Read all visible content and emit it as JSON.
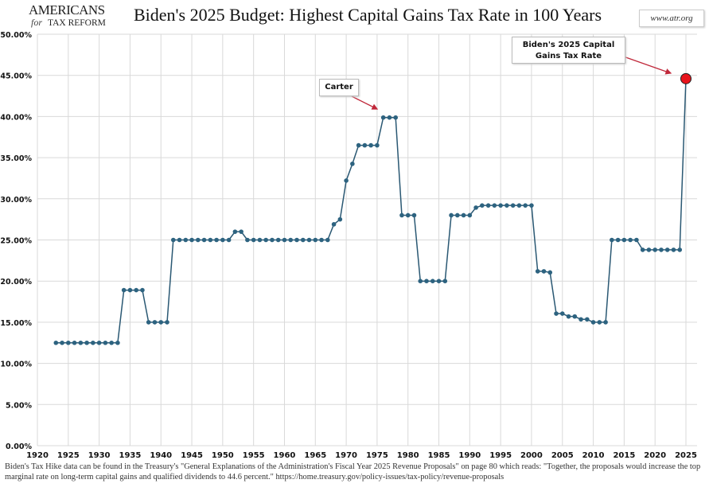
{
  "header": {
    "logo_line1": "AMERICANS",
    "logo_for": "for",
    "logo_line2": "TAX REFORM",
    "title": "Biden's 2025 Budget: Highest Capital Gains Tax Rate in 100 Years",
    "site": "www.atr.org"
  },
  "annotations": {
    "carter": "Carter",
    "biden_line1": "Biden's 2025 Capital",
    "biden_line2": "Gains Tax Rate"
  },
  "footer": {
    "note": "Biden's Tax Hike data can be found in the Treasury's \"General Explanations of the Administration's Fiscal Year 2025 Revenue Proposals\" on page 80 which reads: \"Together, the proposals would increase the top marginal rate on long-term capital gains and qualified dividends to 44.6 percent.\"  https://home.treasury.gov/policy-issues/tax-policy/revenue-proposals"
  },
  "colors": {
    "line": "#2a5873",
    "marker": "#2d6380",
    "highlight": "#e8141c",
    "grid": "#d9d9d9",
    "arrow": "#c0283a"
  },
  "chart_data": {
    "type": "line",
    "title": "Biden's 2025 Budget: Highest Capital Gains Tax Rate in 100 Years",
    "xlabel": "",
    "ylabel": "",
    "xlim": [
      1920,
      2025
    ],
    "ylim": [
      0,
      50
    ],
    "x_ticks": [
      1920,
      1925,
      1930,
      1935,
      1940,
      1945,
      1950,
      1955,
      1960,
      1965,
      1970,
      1975,
      1980,
      1985,
      1990,
      1995,
      2000,
      2005,
      2010,
      2015,
      2020,
      2025
    ],
    "y_ticks": [
      "0.00%",
      "5.00%",
      "10.00%",
      "15.00%",
      "20.00%",
      "25.00%",
      "30.00%",
      "35.00%",
      "40.00%",
      "45.00%",
      "50.00%"
    ],
    "grid": true,
    "x": [
      1923,
      1924,
      1925,
      1926,
      1927,
      1928,
      1929,
      1930,
      1931,
      1932,
      1933,
      1934,
      1935,
      1936,
      1937,
      1938,
      1939,
      1940,
      1941,
      1942,
      1943,
      1944,
      1945,
      1946,
      1947,
      1948,
      1949,
      1950,
      1951,
      1952,
      1953,
      1954,
      1955,
      1956,
      1957,
      1958,
      1959,
      1960,
      1961,
      1962,
      1963,
      1964,
      1965,
      1966,
      1967,
      1968,
      1969,
      1970,
      1971,
      1972,
      1973,
      1974,
      1975,
      1976,
      1977,
      1978,
      1979,
      1980,
      1981,
      1982,
      1983,
      1984,
      1985,
      1986,
      1987,
      1988,
      1989,
      1990,
      1991,
      1992,
      1993,
      1994,
      1995,
      1996,
      1997,
      1998,
      1999,
      2000,
      2001,
      2002,
      2003,
      2004,
      2005,
      2006,
      2007,
      2008,
      2009,
      2010,
      2011,
      2012,
      2013,
      2014,
      2015,
      2016,
      2017,
      2018,
      2019,
      2020,
      2021,
      2022,
      2023,
      2024,
      2025
    ],
    "values": [
      12.5,
      12.5,
      12.5,
      12.5,
      12.5,
      12.5,
      12.5,
      12.5,
      12.5,
      12.5,
      12.5,
      18.9,
      18.9,
      18.9,
      18.9,
      15,
      15,
      15,
      15,
      25,
      25,
      25,
      25,
      25,
      25,
      25,
      25,
      25,
      25,
      26,
      26,
      25,
      25,
      25,
      25,
      25,
      25,
      25,
      25,
      25,
      25,
      25,
      25,
      25,
      25,
      26.9,
      27.5,
      32.21,
      34.25,
      36.5,
      36.5,
      36.5,
      36.5,
      39.875,
      39.875,
      39.875,
      28,
      28,
      28,
      20,
      20,
      20,
      20,
      20,
      28,
      28,
      28,
      28,
      28.93,
      29.19,
      29.19,
      29.19,
      29.19,
      29.19,
      29.19,
      29.19,
      29.19,
      29.19,
      21.19,
      21.19,
      21.05,
      16.05,
      16.05,
      15.7,
      15.7,
      15.35,
      15.35,
      15,
      15,
      15,
      25,
      25,
      25,
      25,
      25,
      23.8,
      23.8,
      23.8,
      23.8,
      23.8,
      23.8,
      23.8,
      44.6
    ]
  }
}
